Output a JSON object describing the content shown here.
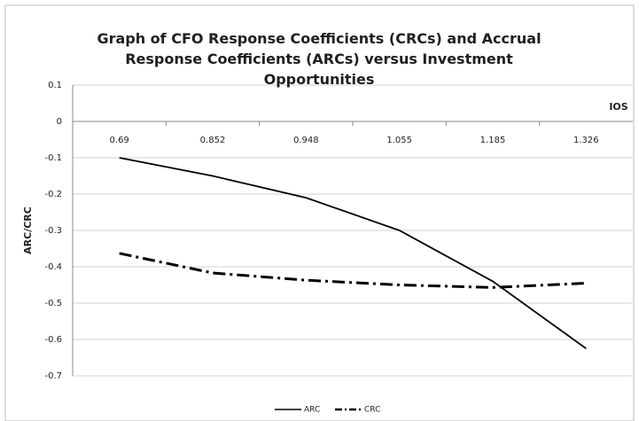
{
  "chart_data": {
    "type": "line",
    "title": "Graph of CFO Response Coefficients (CRCs) and Accrual Response Coefficients (ARCs) versus Investment Opportunities",
    "x_label": "IOS",
    "y_label": "ARC/CRC",
    "categories": [
      "0.69",
      "0.852",
      "0.948",
      "1.055",
      "1.185",
      "1.326"
    ],
    "series": [
      {
        "name": "ARC",
        "color": "#000000",
        "values": [
          -0.1,
          -0.15,
          -0.21,
          -0.3,
          -0.44,
          -0.625
        ]
      },
      {
        "name": "CRC",
        "color": "#000000",
        "values": [
          -0.363,
          -0.417,
          -0.437,
          -0.45,
          -0.457,
          -0.445
        ]
      }
    ],
    "ylim": [
      -0.7,
      0.1
    ],
    "yticks": [
      -0.7,
      -0.6,
      -0.5,
      -0.4,
      -0.3,
      -0.2,
      -0.1,
      0,
      0.1
    ],
    "grid": true,
    "legend": "bottom"
  }
}
